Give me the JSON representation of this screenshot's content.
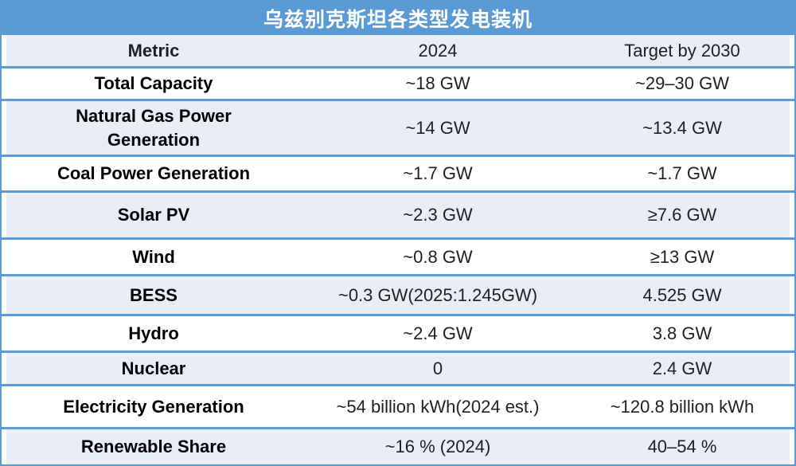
{
  "colors": {
    "title_bar_blue": "#5b9bd5",
    "row_band_fill": "#e9edf6",
    "border_blue": "#5d9dd6",
    "title_text": "#ffffff",
    "body_text": "#1f1f1f"
  },
  "chart_data": {
    "type": "table",
    "title": "乌兹别克斯坦各类型发电装机",
    "columns": [
      "Metric",
      "2024",
      "Target by 2030"
    ],
    "rows": [
      [
        "Total Capacity",
        "~18 GW",
        "~29–30 GW"
      ],
      [
        "Natural Gas Power Generation",
        "~14 GW",
        "~13.4 GW"
      ],
      [
        "Coal Power Generation",
        "~1.7 GW",
        "~1.7 GW"
      ],
      [
        "Solar PV",
        "~2.3 GW",
        "≥7.6 GW"
      ],
      [
        "Wind",
        "~0.8 GW",
        "≥13 GW"
      ],
      [
        "BESS",
        "~0.3 GW(2025:1.245GW)",
        "4.525 GW"
      ],
      [
        "Hydro",
        "~2.4 GW",
        "3.8 GW"
      ],
      [
        "Nuclear",
        "0",
        "2.4 GW"
      ],
      [
        "Electricity Generation",
        "~54 billion kWh(2024 est.)",
        "~120.8 billion kWh"
      ],
      [
        "Renewable Share",
        "~16 % (2024)",
        "40–54 %"
      ]
    ],
    "layout": {
      "banded_rows": "odd data rows filled light blue",
      "header_fill": "light blue-grey",
      "title_bar": "solid blue with white bold centered text"
    }
  }
}
